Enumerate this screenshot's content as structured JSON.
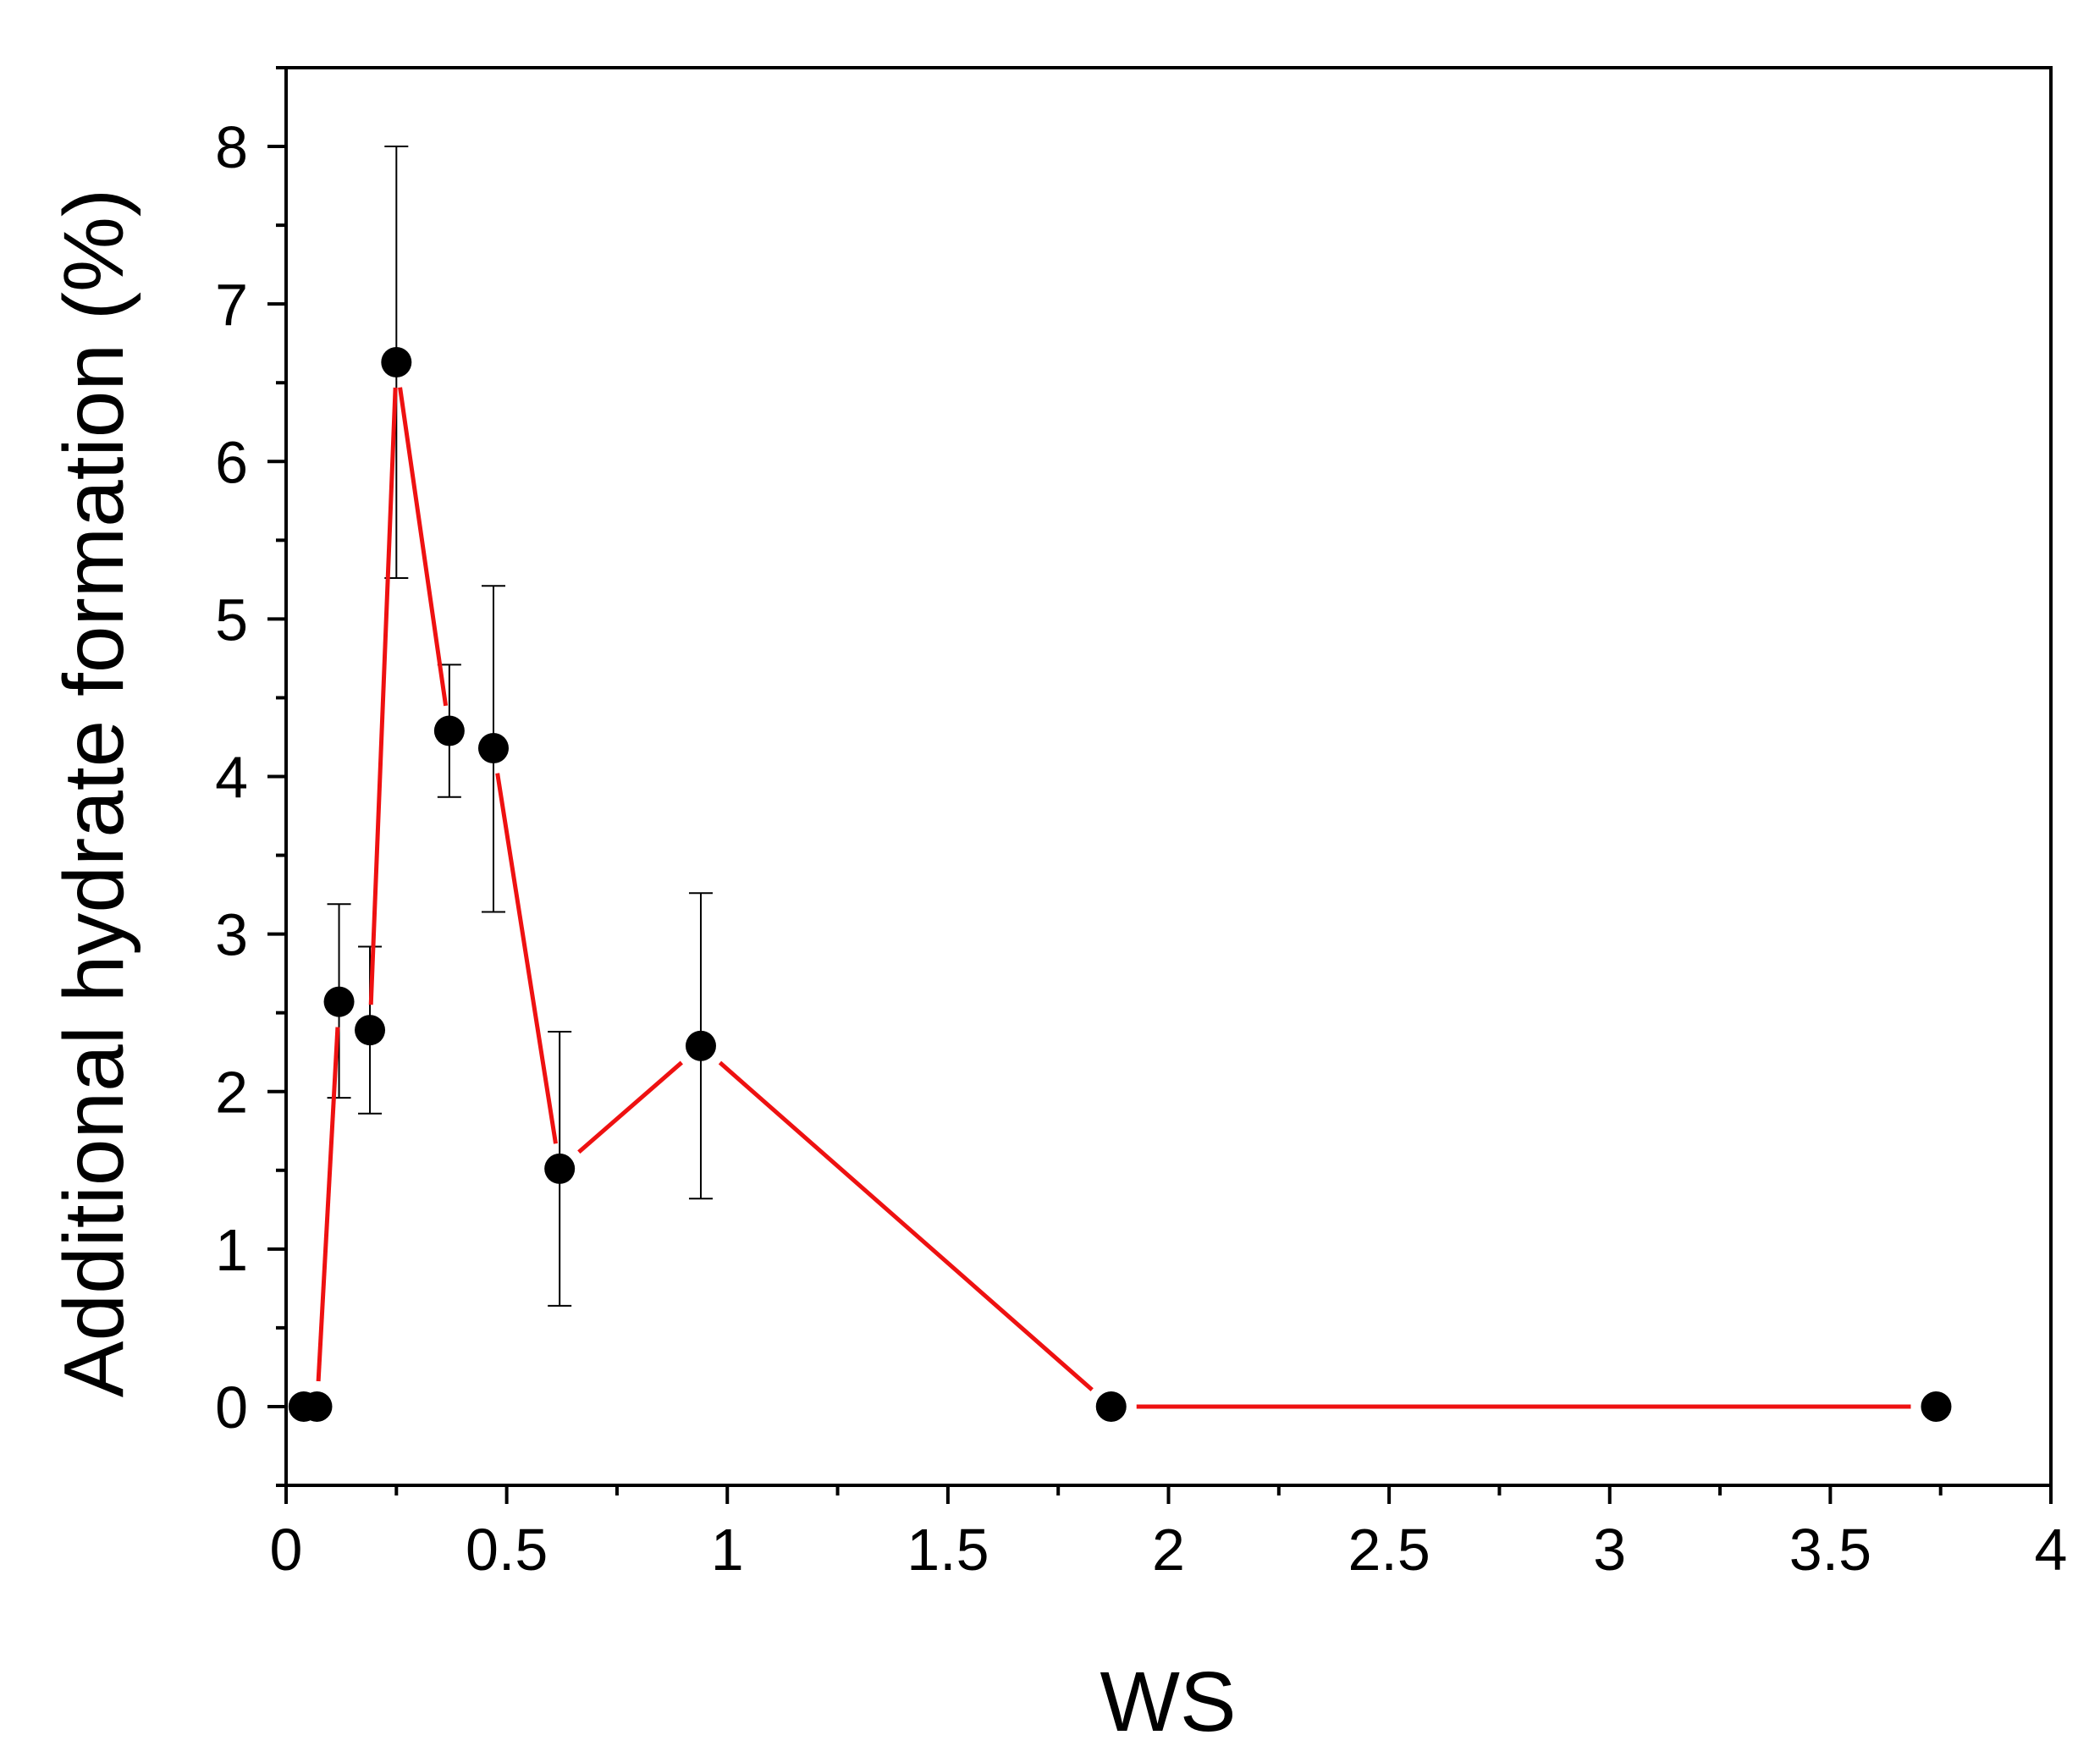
{
  "chart_data": {
    "type": "scatter",
    "xlabel": "WS",
    "ylabel": "Additional hydrate formation (%)",
    "xlim": [
      0,
      4
    ],
    "ylim": [
      -0.5,
      8.5
    ],
    "x_ticks": [
      0,
      0.5,
      1,
      1.5,
      2,
      2.5,
      3,
      3.5,
      4
    ],
    "x_tick_labels": [
      "0",
      "0.5",
      "1",
      "1.5",
      "2",
      "2.5",
      "3",
      "3.5",
      "4"
    ],
    "y_ticks": [
      0,
      1,
      2,
      3,
      4,
      5,
      6,
      7,
      8
    ],
    "y_tick_labels": [
      "0",
      "1",
      "2",
      "3",
      "4",
      "5",
      "6",
      "7",
      "8"
    ],
    "grid": false,
    "line_color": "#ee1111",
    "marker_color": "#000000",
    "points": [
      {
        "x": 0.04,
        "y": 0.0
      },
      {
        "x": 0.07,
        "y": 0.0
      },
      {
        "x": 0.12,
        "y": 2.57,
        "yerr_low": 1.96,
        "yerr_high": 3.19
      },
      {
        "x": 0.19,
        "y": 2.39,
        "yerr_low": 1.86,
        "yerr_high": 2.92
      },
      {
        "x": 0.25,
        "y": 6.63,
        "yerr_low": 5.26,
        "yerr_high": 8.0
      },
      {
        "x": 0.37,
        "y": 4.29,
        "yerr_low": 3.87,
        "yerr_high": 4.71
      },
      {
        "x": 0.47,
        "y": 4.18,
        "yerr_low": 3.14,
        "yerr_high": 5.21
      },
      {
        "x": 0.62,
        "y": 1.51,
        "yerr_low": 0.64,
        "yerr_high": 2.38
      },
      {
        "x": 0.94,
        "y": 2.29,
        "yerr_low": 1.32,
        "yerr_high": 3.26
      },
      {
        "x": 1.87,
        "y": 0.0
      },
      {
        "x": 3.74,
        "y": 0.0
      }
    ]
  }
}
